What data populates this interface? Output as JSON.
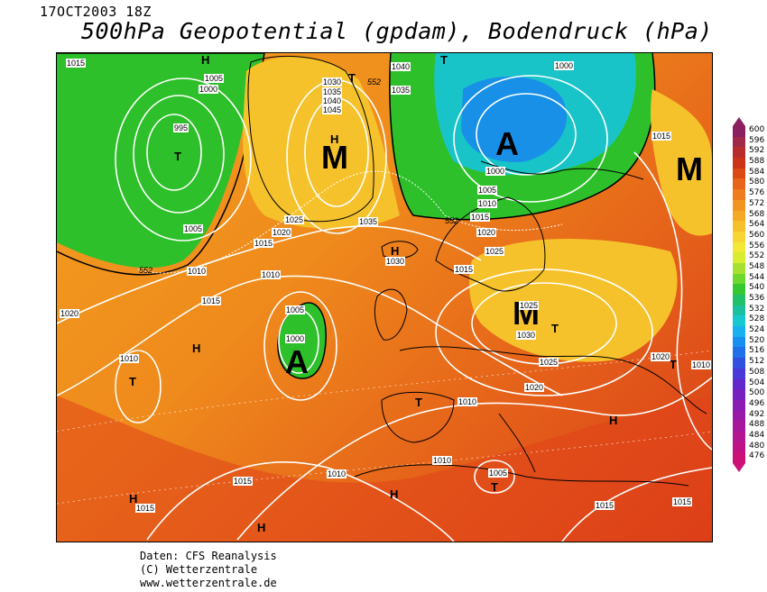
{
  "header": {
    "date": "17OCT2003 18Z",
    "title": "500hPa Geopotential (gpdam), Bodendruck (hPa)"
  },
  "footer": {
    "line1": "Daten: CFS Reanalysis",
    "line2": "(C) Wetterzentrale",
    "line3": "www.wetterzentrale.de"
  },
  "legend": {
    "values": [
      "600",
      "596",
      "592",
      "588",
      "584",
      "580",
      "576",
      "572",
      "568",
      "564",
      "560",
      "556",
      "552",
      "548",
      "544",
      "540",
      "536",
      "532",
      "528",
      "524",
      "520",
      "516",
      "512",
      "508",
      "504",
      "500",
      "496",
      "492",
      "488",
      "484",
      "480",
      "476"
    ],
    "colors": [
      "#8a2060",
      "#a02848",
      "#b82c2c",
      "#cc3418",
      "#dc4a14",
      "#e8641a",
      "#ef7c1e",
      "#f29422",
      "#f4aa26",
      "#f6c02c",
      "#f7d634",
      "#f4e836",
      "#d8ec30",
      "#a8e030",
      "#6ed82e",
      "#36c830",
      "#22c068",
      "#1cc0a0",
      "#18c8d0",
      "#18b0ee",
      "#1890f0",
      "#2070e8",
      "#3050e0",
      "#4a38d8",
      "#6228cc",
      "#7620c0",
      "#8a1cb4",
      "#9a18a8",
      "#a8169c",
      "#b41490",
      "#c01284",
      "#cc1078"
    ]
  },
  "map": {
    "pressure_labels": [
      "1015",
      "1005",
      "1000",
      "995",
      "1005",
      "1030",
      "1035",
      "1040",
      "1045",
      "1040",
      "1035",
      "1000",
      "1015",
      "1000",
      "1005",
      "1010",
      "1015",
      "1020",
      "1025",
      "1035",
      "1015",
      "1020",
      "1020",
      "1025",
      "1030",
      "1015",
      "1010",
      "1010",
      "1005",
      "1000",
      "1015",
      "1010",
      "1020",
      "1025",
      "1030",
      "1025",
      "1020",
      "1010",
      "1010",
      "1010",
      "1005",
      "1015",
      "1015",
      "1015",
      "1015",
      "1015",
      "1010"
    ],
    "height_labels": [
      "552",
      "552",
      "552",
      "552"
    ],
    "systems": [
      {
        "label": "M",
        "size": "large"
      },
      {
        "label": "A",
        "size": "large"
      },
      {
        "label": "M",
        "size": "large"
      },
      {
        "label": "M",
        "size": "large"
      },
      {
        "label": "A",
        "size": "large"
      },
      {
        "label": "H",
        "size": "small"
      },
      {
        "label": "H",
        "size": "small"
      },
      {
        "label": "H",
        "size": "small"
      },
      {
        "label": "H",
        "size": "small"
      },
      {
        "label": "H",
        "size": "small"
      },
      {
        "label": "H",
        "size": "small"
      },
      {
        "label": "H",
        "size": "small"
      },
      {
        "label": "H",
        "size": "small"
      },
      {
        "label": "T",
        "size": "small"
      },
      {
        "label": "T",
        "size": "small"
      },
      {
        "label": "T",
        "size": "small"
      },
      {
        "label": "T",
        "size": "small"
      },
      {
        "label": "T",
        "size": "small"
      },
      {
        "label": "T",
        "size": "small"
      },
      {
        "label": "T",
        "size": "small"
      },
      {
        "label": "T",
        "size": "small"
      }
    ]
  }
}
